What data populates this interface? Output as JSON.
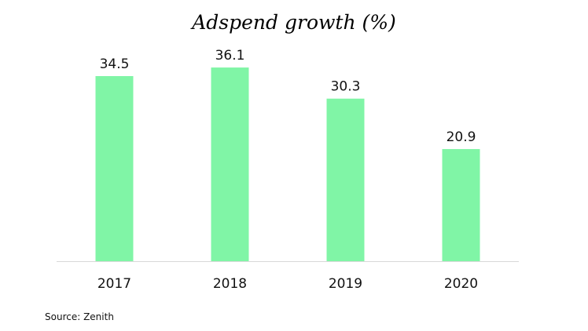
{
  "chart_data": {
    "type": "bar",
    "title": "Adspend growth (%)",
    "categories": [
      "2017",
      "2018",
      "2019",
      "2020"
    ],
    "values": [
      34.5,
      36.1,
      30.3,
      20.9
    ],
    "data_labels": [
      "34.5",
      "36.1",
      "30.3",
      "20.9"
    ],
    "xlabel": "",
    "ylabel": "",
    "ylim": [
      0,
      48
    ],
    "grid": false,
    "bar_color": "#80F5A6",
    "axis_color": "#D9D9D9"
  },
  "source": "Source: Zenith"
}
